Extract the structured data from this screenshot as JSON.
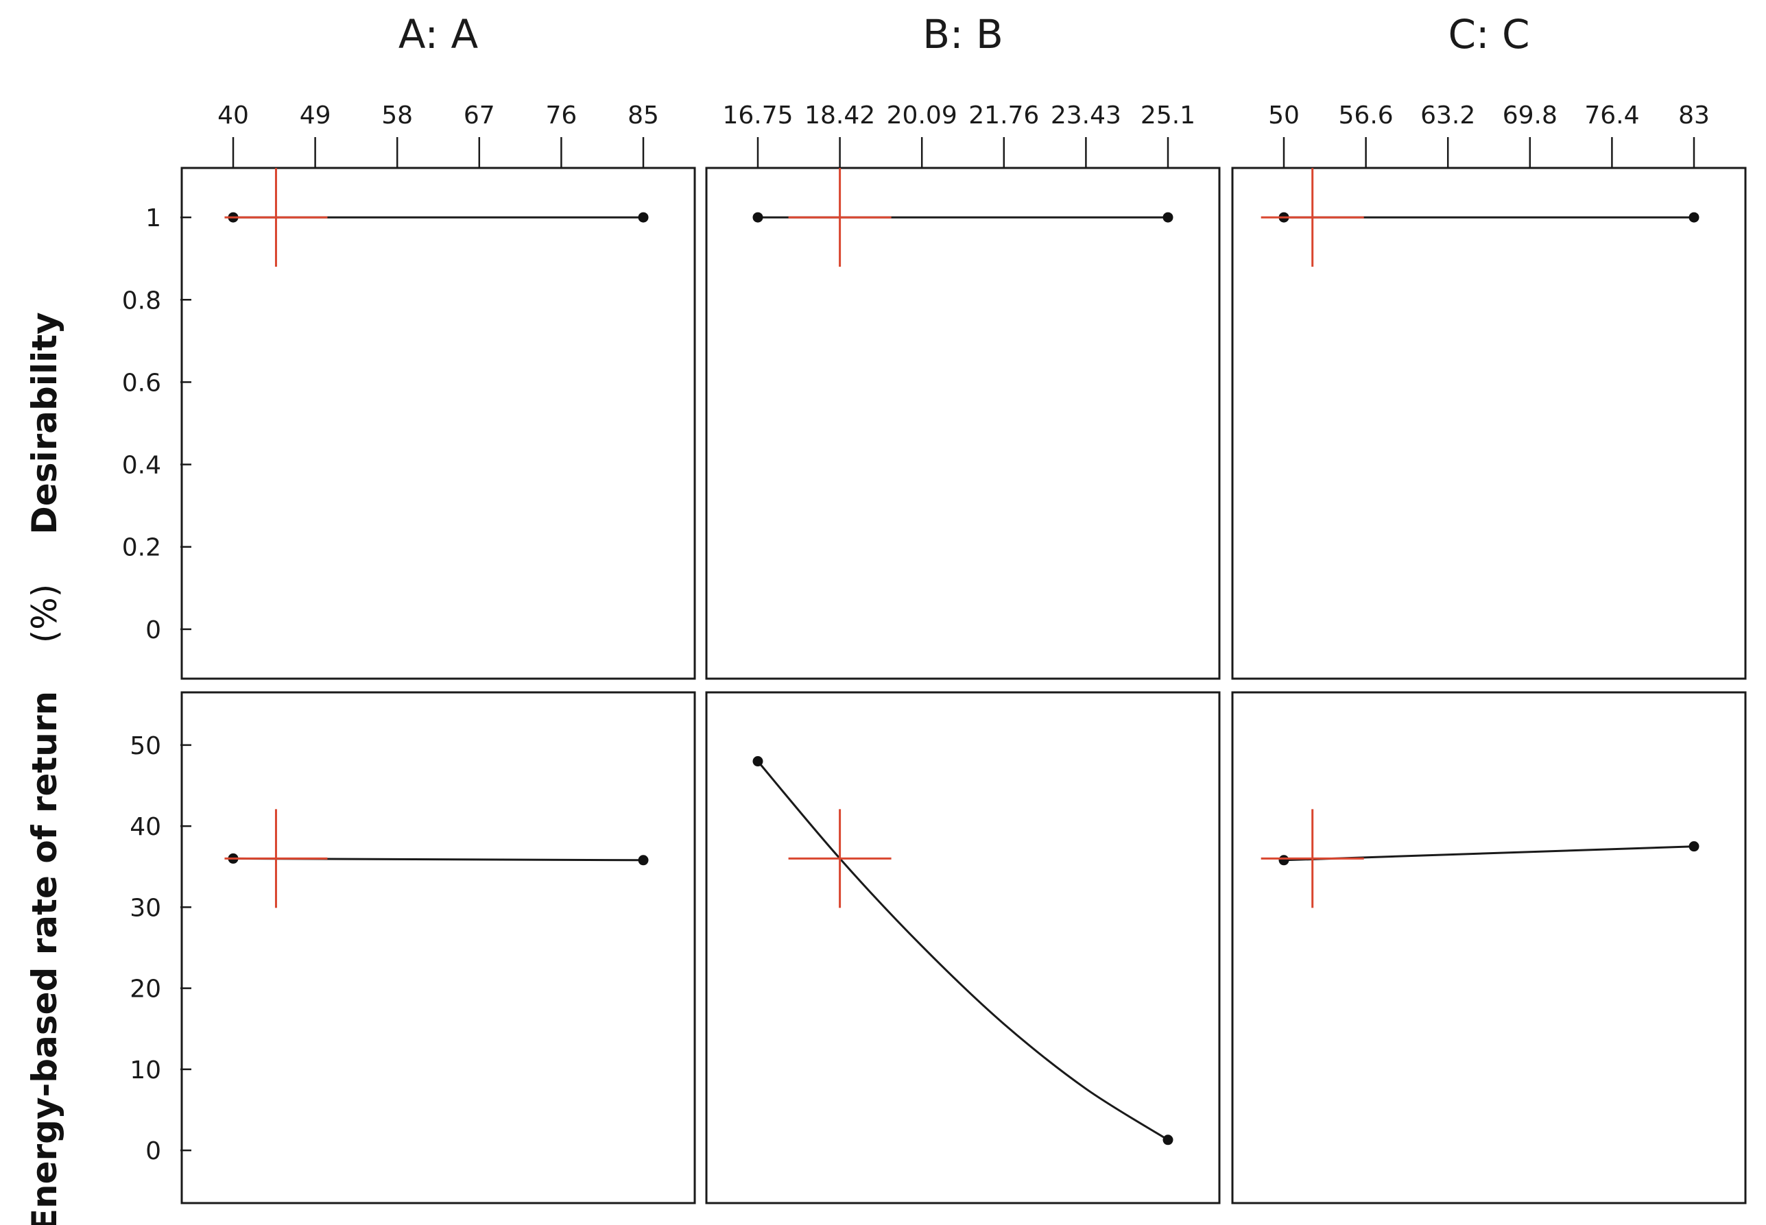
{
  "chart_data": {
    "type": "line",
    "columns": [
      {
        "id": "A",
        "title": "A: A",
        "ticks": [
          40,
          49,
          58,
          67,
          76,
          85
        ],
        "tick_labels": [
          "40",
          "49",
          "58",
          "67",
          "76",
          "85"
        ],
        "xlim": [
          40,
          85
        ],
        "current": 44.7,
        "desirability": [
          {
            "x": 40,
            "y": 1
          },
          {
            "x": 85,
            "y": 1
          }
        ],
        "response": [
          {
            "x": 40,
            "y": 36
          },
          {
            "x": 85,
            "y": 35.8
          }
        ]
      },
      {
        "id": "B",
        "title": "B: B",
        "ticks": [
          16.75,
          18.42,
          20.09,
          21.76,
          23.43,
          25.1
        ],
        "tick_labels": [
          "16.75",
          "18.42",
          "20.09",
          "21.76",
          "23.43",
          "25.1"
        ],
        "xlim": [
          16.75,
          25.1
        ],
        "current": 18.42,
        "desirability": [
          {
            "x": 16.75,
            "y": 1
          },
          {
            "x": 25.1,
            "y": 1
          }
        ],
        "response": [
          {
            "x": 16.75,
            "y": 48
          },
          {
            "x": 18.42,
            "y": 36
          },
          {
            "x": 20.09,
            "y": 25.2
          },
          {
            "x": 21.76,
            "y": 15.6
          },
          {
            "x": 23.43,
            "y": 7.6
          },
          {
            "x": 25.1,
            "y": 1.3
          }
        ]
      },
      {
        "id": "C",
        "title": "C: C",
        "ticks": [
          50,
          56.6,
          63.2,
          69.8,
          76.4,
          83
        ],
        "tick_labels": [
          "50",
          "56.6",
          "63.2",
          "69.8",
          "76.4",
          "83"
        ],
        "xlim": [
          50,
          83
        ],
        "current": 52.3,
        "desirability": [
          {
            "x": 50,
            "y": 1
          },
          {
            "x": 83,
            "y": 1
          }
        ],
        "response": [
          {
            "x": 50,
            "y": 35.8
          },
          {
            "x": 83,
            "y": 37.5
          }
        ]
      }
    ],
    "rows": [
      {
        "id": "desirability",
        "ylabel": "Desirability",
        "yticks": [
          0,
          0.2,
          0.4,
          0.6,
          0.8,
          1
        ],
        "ytick_labels": [
          "0",
          "0.2",
          "0.4",
          "0.6",
          "0.8",
          "1"
        ],
        "ylim": [
          -0.12,
          1.12
        ],
        "current_value": 1
      },
      {
        "id": "response",
        "ylabel": "Energy-based rate of return",
        "ylabel_unit": "(%)",
        "yticks": [
          0,
          10,
          20,
          30,
          40,
          50
        ],
        "ytick_labels": [
          "0",
          "10",
          "20",
          "30",
          "40",
          "50"
        ],
        "ylim": [
          -6.5,
          56.5
        ],
        "current_value": 36
      }
    ],
    "grid": false,
    "colors": {
      "line": "#1a1a1a",
      "point": "#111111",
      "current_marker": "#d9462f"
    }
  }
}
